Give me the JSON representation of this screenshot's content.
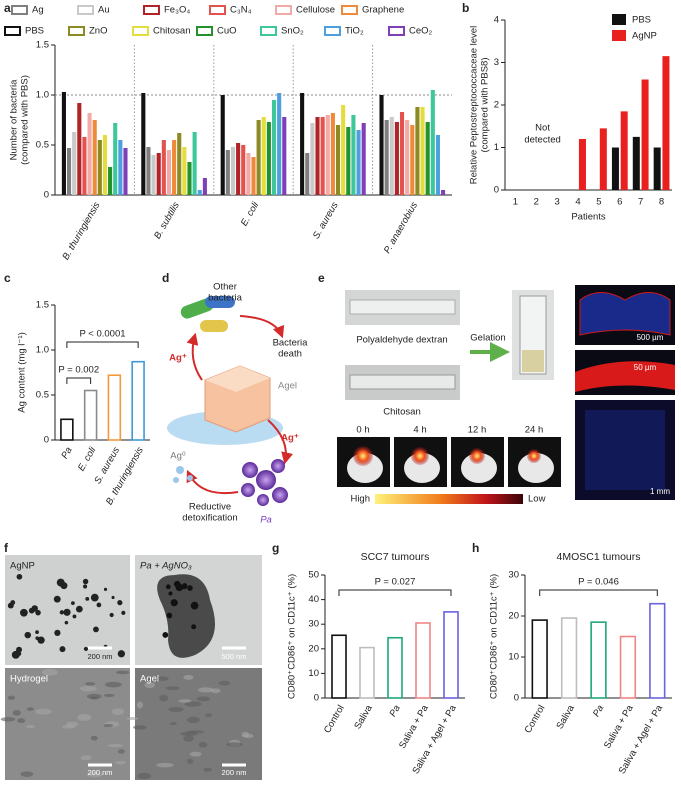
{
  "panel_labels": [
    "a",
    "b",
    "c",
    "d",
    "e",
    "f",
    "g",
    "h"
  ],
  "chart_data": [
    {
      "type": "bar",
      "ylabel": [
        "Number of bacteria",
        "(compared with PBS)"
      ],
      "categories": [
        "B. thuringiensis",
        "B. subtilis",
        "E. coli",
        "S. aureus",
        "P. anaerobius"
      ],
      "ylim": [
        0,
        1.5
      ],
      "yticks": [
        0,
        0.5,
        {
          "value": 1,
          "label": "1.0"
        },
        1.5
      ],
      "reference_line": 1,
      "series": [
        {
          "name": "PBS",
          "color": "#111111",
          "values": [
            1.03,
            1.02,
            1.0,
            1.02,
            1.0
          ]
        },
        {
          "name": "Ag",
          "color": "#7f7f7f",
          "values": [
            0.47,
            0.48,
            0.45,
            0.42,
            0.75
          ]
        },
        {
          "name": "Au",
          "color": "#c9c9c9",
          "values": [
            0.63,
            0.4,
            0.48,
            0.72,
            0.78
          ]
        },
        {
          "name": "Fe₃O₄",
          "color": "#b02428",
          "values": [
            0.92,
            0.42,
            0.52,
            0.78,
            0.73
          ]
        },
        {
          "name": "C₃N₄",
          "color": "#e4524f",
          "values": [
            0.58,
            0.55,
            0.5,
            0.78,
            0.83
          ]
        },
        {
          "name": "Cellulose",
          "color": "#f3a9a6",
          "values": [
            0.82,
            0.45,
            0.42,
            0.8,
            0.75
          ]
        },
        {
          "name": "Graphene",
          "color": "#ee8a3a",
          "values": [
            0.75,
            0.55,
            0.38,
            0.82,
            0.7
          ]
        },
        {
          "name": "ZnO",
          "color": "#8c8a22",
          "values": [
            0.55,
            0.62,
            0.75,
            0.7,
            0.88
          ]
        },
        {
          "name": "Chitosan",
          "color": "#e5dc3d",
          "values": [
            0.6,
            0.48,
            0.78,
            0.9,
            0.88
          ]
        },
        {
          "name": "CuO",
          "color": "#24922c",
          "values": [
            0.28,
            0.33,
            0.73,
            0.68,
            0.73
          ]
        },
        {
          "name": "SnO₂",
          "color": "#3fc79c",
          "values": [
            0.72,
            0.63,
            0.95,
            0.8,
            1.05
          ]
        },
        {
          "name": "TiO₂",
          "color": "#4e9fdf",
          "values": [
            0.55,
            0.05,
            1.02,
            0.65,
            0.6
          ]
        },
        {
          "name": "CeO₂",
          "color": "#7e3fb8",
          "values": [
            0.47,
            0.17,
            0.78,
            0.72,
            0.05
          ]
        }
      ]
    },
    {
      "type": "bar",
      "ylabel": [
        "Relative Peptostreptococcaceae level",
        "(compared with PBS8)"
      ],
      "xlabel": "Patients",
      "categories": [
        "1",
        "2",
        "3",
        "4",
        "5",
        "6",
        "7",
        "8"
      ],
      "ylim": [
        0,
        4
      ],
      "yticks": [
        0,
        1,
        2,
        3,
        4
      ],
      "annotations": [
        "Not",
        "detected"
      ],
      "series": [
        {
          "name": "PBS",
          "color": "#111111",
          "values": [
            null,
            null,
            null,
            null,
            null,
            1.0,
            1.25,
            1.0
          ]
        },
        {
          "name": "AgNP",
          "color": "#e8201e",
          "values": [
            null,
            null,
            null,
            1.2,
            1.45,
            1.85,
            2.6,
            3.15
          ]
        }
      ]
    },
    {
      "type": "bar",
      "ylabel": "Ag content (mg l⁻¹)",
      "categories": [
        "Pa",
        "E. coli",
        "S. aureus",
        "B. thuringiensis"
      ],
      "values": [
        0.23,
        0.55,
        0.72,
        0.87
      ],
      "colors": [
        "#111111",
        "#8a8a8a",
        "#f09a3a",
        "#3d9ad8"
      ],
      "ylim": [
        0,
        1.5
      ],
      "yticks": [
        0,
        0.5,
        {
          "value": 1,
          "label": "1.0"
        },
        1.5
      ],
      "annotations": [
        "P < 0.0001",
        "P = 0.002"
      ]
    },
    {
      "type": "bar",
      "title": "SCC7 tumours",
      "ylabel": "CD80⁺CD86⁺ on CD11c⁺ (%)",
      "categories": [
        "Control",
        "Saliva",
        "Pa",
        "Saliva + Pa",
        "Saliva + Agel + Pa"
      ],
      "values": [
        25.5,
        20.5,
        24.5,
        30.5,
        35
      ],
      "colors": [
        "#111111",
        "#bdbdbd",
        "#1fa87a",
        "#f08585",
        "#6a62e0"
      ],
      "ylim": [
        0,
        50
      ],
      "yticks": [
        0,
        10,
        20,
        30,
        40,
        50
      ],
      "annotations": [
        "P = 0.027"
      ]
    },
    {
      "type": "bar",
      "title": "4MOSC1 tumours",
      "ylabel": "CD80⁺CD86⁺ on CD11c⁺ (%)",
      "categories": [
        "Control",
        "Saliva",
        "Pa",
        "Saliva + Pa",
        "Saliva + Agel + Pa"
      ],
      "values": [
        19,
        19.5,
        18.5,
        15,
        23
      ],
      "colors": [
        "#111111",
        "#bdbdbd",
        "#1fa87a",
        "#f08585",
        "#6a62e0"
      ],
      "ylim": [
        0,
        30
      ],
      "yticks": [
        0,
        10,
        20,
        30
      ],
      "annotations": [
        "P = 0.046"
      ]
    }
  ],
  "diagram_d": [
    "Other",
    "bacteria",
    "Bacteria",
    "death",
    "Ag⁺",
    "Ag⁺",
    "Agel",
    "Ag⁰",
    "Reductive",
    "detoxification",
    "Pa"
  ],
  "images_e": [
    "Polyaldehyde dextran",
    "Chitosan",
    "Gelation",
    "0 h",
    "4 h",
    "12 h",
    "24 h",
    "High",
    "Low",
    "500 µm",
    "50 µm",
    "1 mm"
  ],
  "images_f": [
    "AgNP",
    "Pa + AgNO₃",
    "200 nm",
    "500 nm",
    "Hydrogel",
    "Agel",
    "200 nm",
    "200 nm"
  ]
}
